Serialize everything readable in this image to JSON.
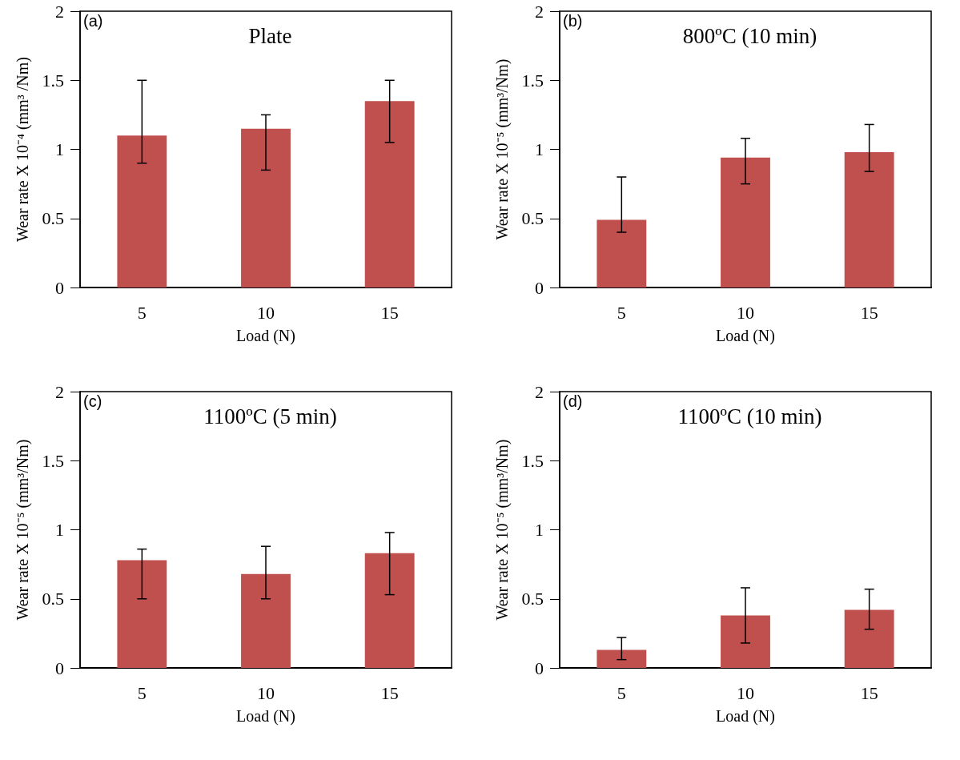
{
  "chart_data": [
    {
      "type": "bar",
      "title": "Plate",
      "annotations": [
        "(a)"
      ],
      "xlabel": "Load (N)",
      "ylabel": "Wear rate X 10⁻⁴ (mm³ /Nm)",
      "categories": [
        "5",
        "10",
        "15"
      ],
      "color": "#c0504d",
      "values": [
        1.1,
        1.15,
        1.35
      ],
      "errors": [
        [
          0.9,
          1.5
        ],
        [
          0.85,
          1.25
        ],
        [
          1.05,
          1.5
        ]
      ],
      "ylim": [
        0,
        2
      ],
      "yticks": [
        0,
        0.5,
        1,
        1.5,
        2
      ]
    },
    {
      "type": "bar",
      "title": "800ºC (10 min)",
      "annotations": [
        "(b)"
      ],
      "xlabel": "Load (N)",
      "ylabel": "Wear rate X 10⁻⁵ (mm³/Nm)",
      "categories": [
        "5",
        "10",
        "15"
      ],
      "color": "#c0504d",
      "values": [
        0.49,
        0.94,
        0.98
      ],
      "errors": [
        [
          0.4,
          0.8
        ],
        [
          0.75,
          1.08
        ],
        [
          0.84,
          1.18
        ]
      ],
      "ylim": [
        0,
        2
      ],
      "yticks": [
        0,
        0.5,
        1,
        1.5,
        2
      ]
    },
    {
      "type": "bar",
      "title": "1100ºC (5 min)",
      "annotations": [
        "(c)"
      ],
      "xlabel": "Load (N)",
      "ylabel": "Wear rate X 10⁻⁵ (mm³/Nm)",
      "categories": [
        "5",
        "10",
        "15"
      ],
      "color": "#c0504d",
      "values": [
        0.78,
        0.68,
        0.83
      ],
      "errors": [
        [
          0.5,
          0.86
        ],
        [
          0.5,
          0.88
        ],
        [
          0.53,
          0.98
        ]
      ],
      "ylim": [
        0,
        2
      ],
      "yticks": [
        0,
        0.5,
        1,
        1.5,
        2
      ]
    },
    {
      "type": "bar",
      "title": "1100ºC (10 min)",
      "annotations": [
        "(d)"
      ],
      "xlabel": "Load (N)",
      "ylabel": "Wear rate X 10⁻⁵ (mm³/Nm)",
      "categories": [
        "5",
        "10",
        "15"
      ],
      "color": "#c0504d",
      "values": [
        0.13,
        0.38,
        0.42
      ],
      "errors": [
        [
          0.06,
          0.22
        ],
        [
          0.18,
          0.58
        ],
        [
          0.28,
          0.57
        ]
      ],
      "ylim": [
        0,
        2
      ],
      "yticks": [
        0,
        0.5,
        1,
        1.5,
        2
      ]
    }
  ]
}
